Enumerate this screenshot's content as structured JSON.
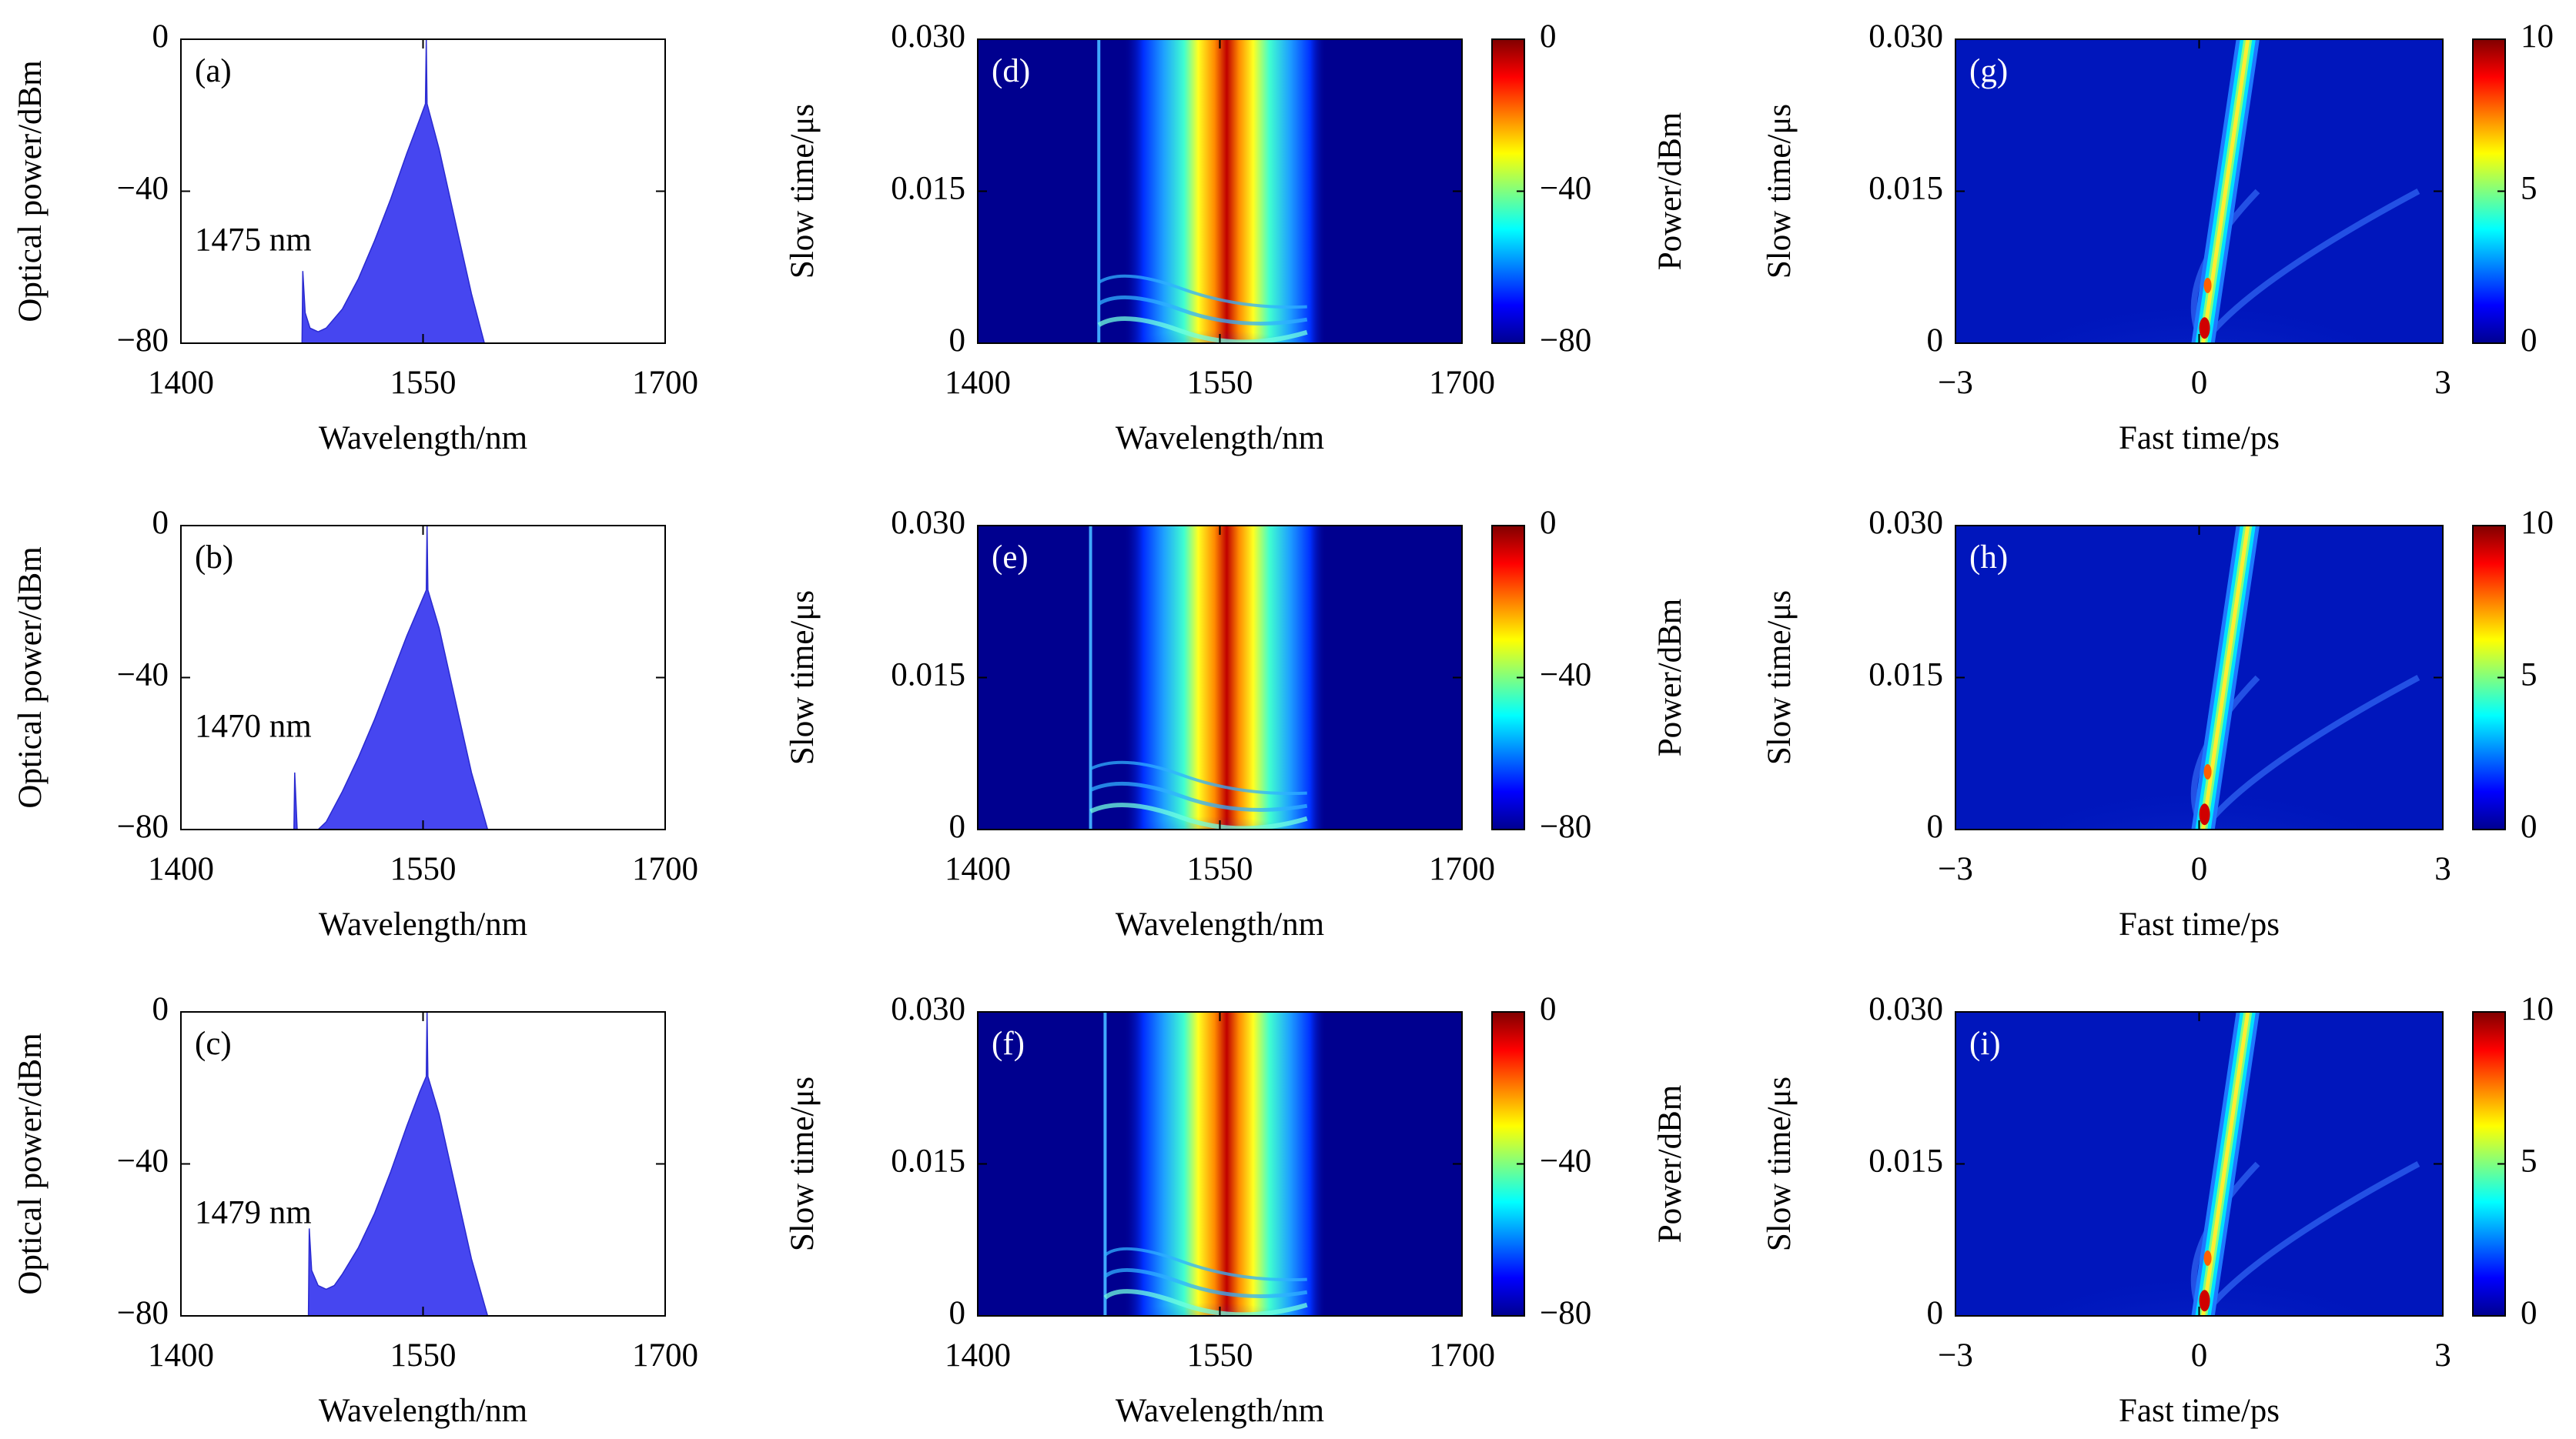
{
  "chart_data": [
    {
      "type": "area",
      "panel_label": "(a)",
      "annotation": "1475 nm",
      "color": "#4646f0",
      "xlabel": "Wavelength/nm",
      "ylabel": "Optical power/dBm",
      "x": [
        1475,
        1475.5,
        1477,
        1480,
        1485,
        1490,
        1500,
        1510,
        1520,
        1530,
        1540,
        1548,
        1551.5,
        1552,
        1552.5,
        1560,
        1570,
        1580,
        1588
      ],
      "values": [
        -80,
        -61,
        -72,
        -76,
        -77,
        -76,
        -71,
        -63,
        -53,
        -42,
        -30,
        -21,
        -17,
        0,
        -17,
        -29,
        -48,
        -67,
        -80
      ],
      "xlim": [
        1400,
        1700
      ],
      "xticks": [
        1400,
        1550,
        1700
      ],
      "ylim": [
        -80,
        0
      ],
      "yticks": [
        {
          "value": -80,
          "label": "−80"
        },
        {
          "value": -40,
          "label": "−40"
        },
        0
      ]
    },
    {
      "type": "area",
      "panel_label": "(b)",
      "annotation": "1470 nm",
      "color": "#4646f0",
      "xlabel": "Wavelength/nm",
      "ylabel": "Optical power/dBm",
      "x": [
        1470,
        1470.5,
        1472,
        1480,
        1485,
        1490,
        1500,
        1510,
        1520,
        1530,
        1540,
        1548,
        1552,
        1552.5,
        1553,
        1560,
        1570,
        1580,
        1590
      ],
      "values": [
        -80,
        -65,
        -80,
        -80,
        -80,
        -78,
        -70,
        -61,
        -51,
        -40,
        -29,
        -21,
        -17,
        0,
        -17,
        -27,
        -46,
        -65,
        -80
      ],
      "xlim": [
        1400,
        1700
      ],
      "xticks": [
        1400,
        1550,
        1700
      ],
      "ylim": [
        -80,
        0
      ],
      "yticks": [
        {
          "value": -80,
          "label": "−80"
        },
        {
          "value": -40,
          "label": "−40"
        },
        0
      ]
    },
    {
      "type": "area",
      "panel_label": "(c)",
      "annotation": "1479 nm",
      "color": "#4646f0",
      "xlabel": "Wavelength/nm",
      "ylabel": "Optical power/dBm",
      "x": [
        1479,
        1479.5,
        1481,
        1485,
        1490,
        1495,
        1500,
        1510,
        1520,
        1530,
        1540,
        1548,
        1552,
        1552.5,
        1553,
        1560,
        1570,
        1580,
        1590
      ],
      "values": [
        -80,
        -57,
        -68,
        -72,
        -73,
        -72,
        -69,
        -62,
        -53,
        -42,
        -30,
        -21,
        -17,
        0,
        -17,
        -27,
        -46,
        -65,
        -80
      ],
      "xlim": [
        1400,
        1700
      ],
      "xticks": [
        1400,
        1550,
        1700
      ],
      "ylim": [
        -80,
        0
      ],
      "yticks": [
        {
          "value": -80,
          "label": "−80"
        },
        {
          "value": -40,
          "label": "−40"
        },
        0
      ]
    },
    {
      "type": "spectrogram",
      "panel_label": "(d)",
      "xlabel": "Wavelength/nm",
      "ylabel": "Slow time/μs",
      "xlim": [
        1400,
        1700
      ],
      "xticks": [
        1400,
        1550,
        1700
      ],
      "ylim": [
        0,
        0.03
      ],
      "yticks": [
        0,
        0.015,
        {
          "value": 0.03,
          "label": "0.030"
        }
      ],
      "colorbar": {
        "lim": [
          -80,
          0
        ],
        "ticks": [
          {
            "value": -80,
            "label": "−80"
          },
          {
            "value": -40,
            "label": "−40"
          },
          0
        ],
        "label": "Power/dBm"
      }
    },
    {
      "type": "spectrogram",
      "panel_label": "(e)",
      "xlabel": "Wavelength/nm",
      "ylabel": "Slow time/μs",
      "xlim": [
        1400,
        1700
      ],
      "xticks": [
        1400,
        1550,
        1700
      ],
      "ylim": [
        0,
        0.03
      ],
      "yticks": [
        0,
        0.015,
        {
          "value": 0.03,
          "label": "0.030"
        }
      ],
      "colorbar": {
        "lim": [
          -80,
          0
        ],
        "ticks": [
          {
            "value": -80,
            "label": "−80"
          },
          {
            "value": -40,
            "label": "−40"
          },
          0
        ],
        "label": "Power/dBm"
      }
    },
    {
      "type": "spectrogram",
      "panel_label": "(f)",
      "xlabel": "Wavelength/nm",
      "ylabel": "Slow time/μs",
      "xlim": [
        1400,
        1700
      ],
      "xticks": [
        1400,
        1550,
        1700
      ],
      "ylim": [
        0,
        0.03
      ],
      "yticks": [
        0,
        0.015,
        {
          "value": 0.03,
          "label": "0.030"
        }
      ],
      "colorbar": {
        "lim": [
          -80,
          0
        ],
        "ticks": [
          {
            "value": -80,
            "label": "−80"
          },
          {
            "value": -40,
            "label": "−40"
          },
          0
        ],
        "label": "Power/dBm"
      }
    },
    {
      "type": "heatmap",
      "panel_label": "(g)",
      "xlabel": "Fast time/ps",
      "ylabel": "Slow time/μs",
      "xlim": [
        -3,
        3
      ],
      "xticks": [
        {
          "value": -3,
          "label": "−3"
        },
        0,
        3
      ],
      "ylim": [
        0,
        0.03
      ],
      "yticks": [
        0,
        0.015,
        {
          "value": 0.03,
          "label": "0.030"
        }
      ],
      "colorbar": {
        "lim": [
          0,
          10
        ],
        "ticks": [
          0,
          5,
          10
        ]
      }
    },
    {
      "type": "heatmap",
      "panel_label": "(h)",
      "xlabel": "Fast time/ps",
      "ylabel": "Slow time/μs",
      "xlim": [
        -3,
        3
      ],
      "xticks": [
        {
          "value": -3,
          "label": "−3"
        },
        0,
        3
      ],
      "ylim": [
        0,
        0.03
      ],
      "yticks": [
        0,
        0.015,
        {
          "value": 0.03,
          "label": "0.030"
        }
      ],
      "colorbar": {
        "lim": [
          0,
          10
        ],
        "ticks": [
          0,
          5,
          10
        ]
      }
    },
    {
      "type": "heatmap",
      "panel_label": "(i)",
      "xlabel": "Fast time/ps",
      "ylabel": "Slow time/μs",
      "xlim": [
        -3,
        3
      ],
      "xticks": [
        {
          "value": -3,
          "label": "−3"
        },
        0,
        3
      ],
      "ylim": [
        0,
        0.03
      ],
      "yticks": [
        0,
        0.015,
        {
          "value": 0.03,
          "label": "0.030"
        }
      ],
      "colorbar": {
        "lim": [
          0,
          10
        ],
        "ticks": [
          0,
          5,
          10
        ]
      }
    }
  ]
}
